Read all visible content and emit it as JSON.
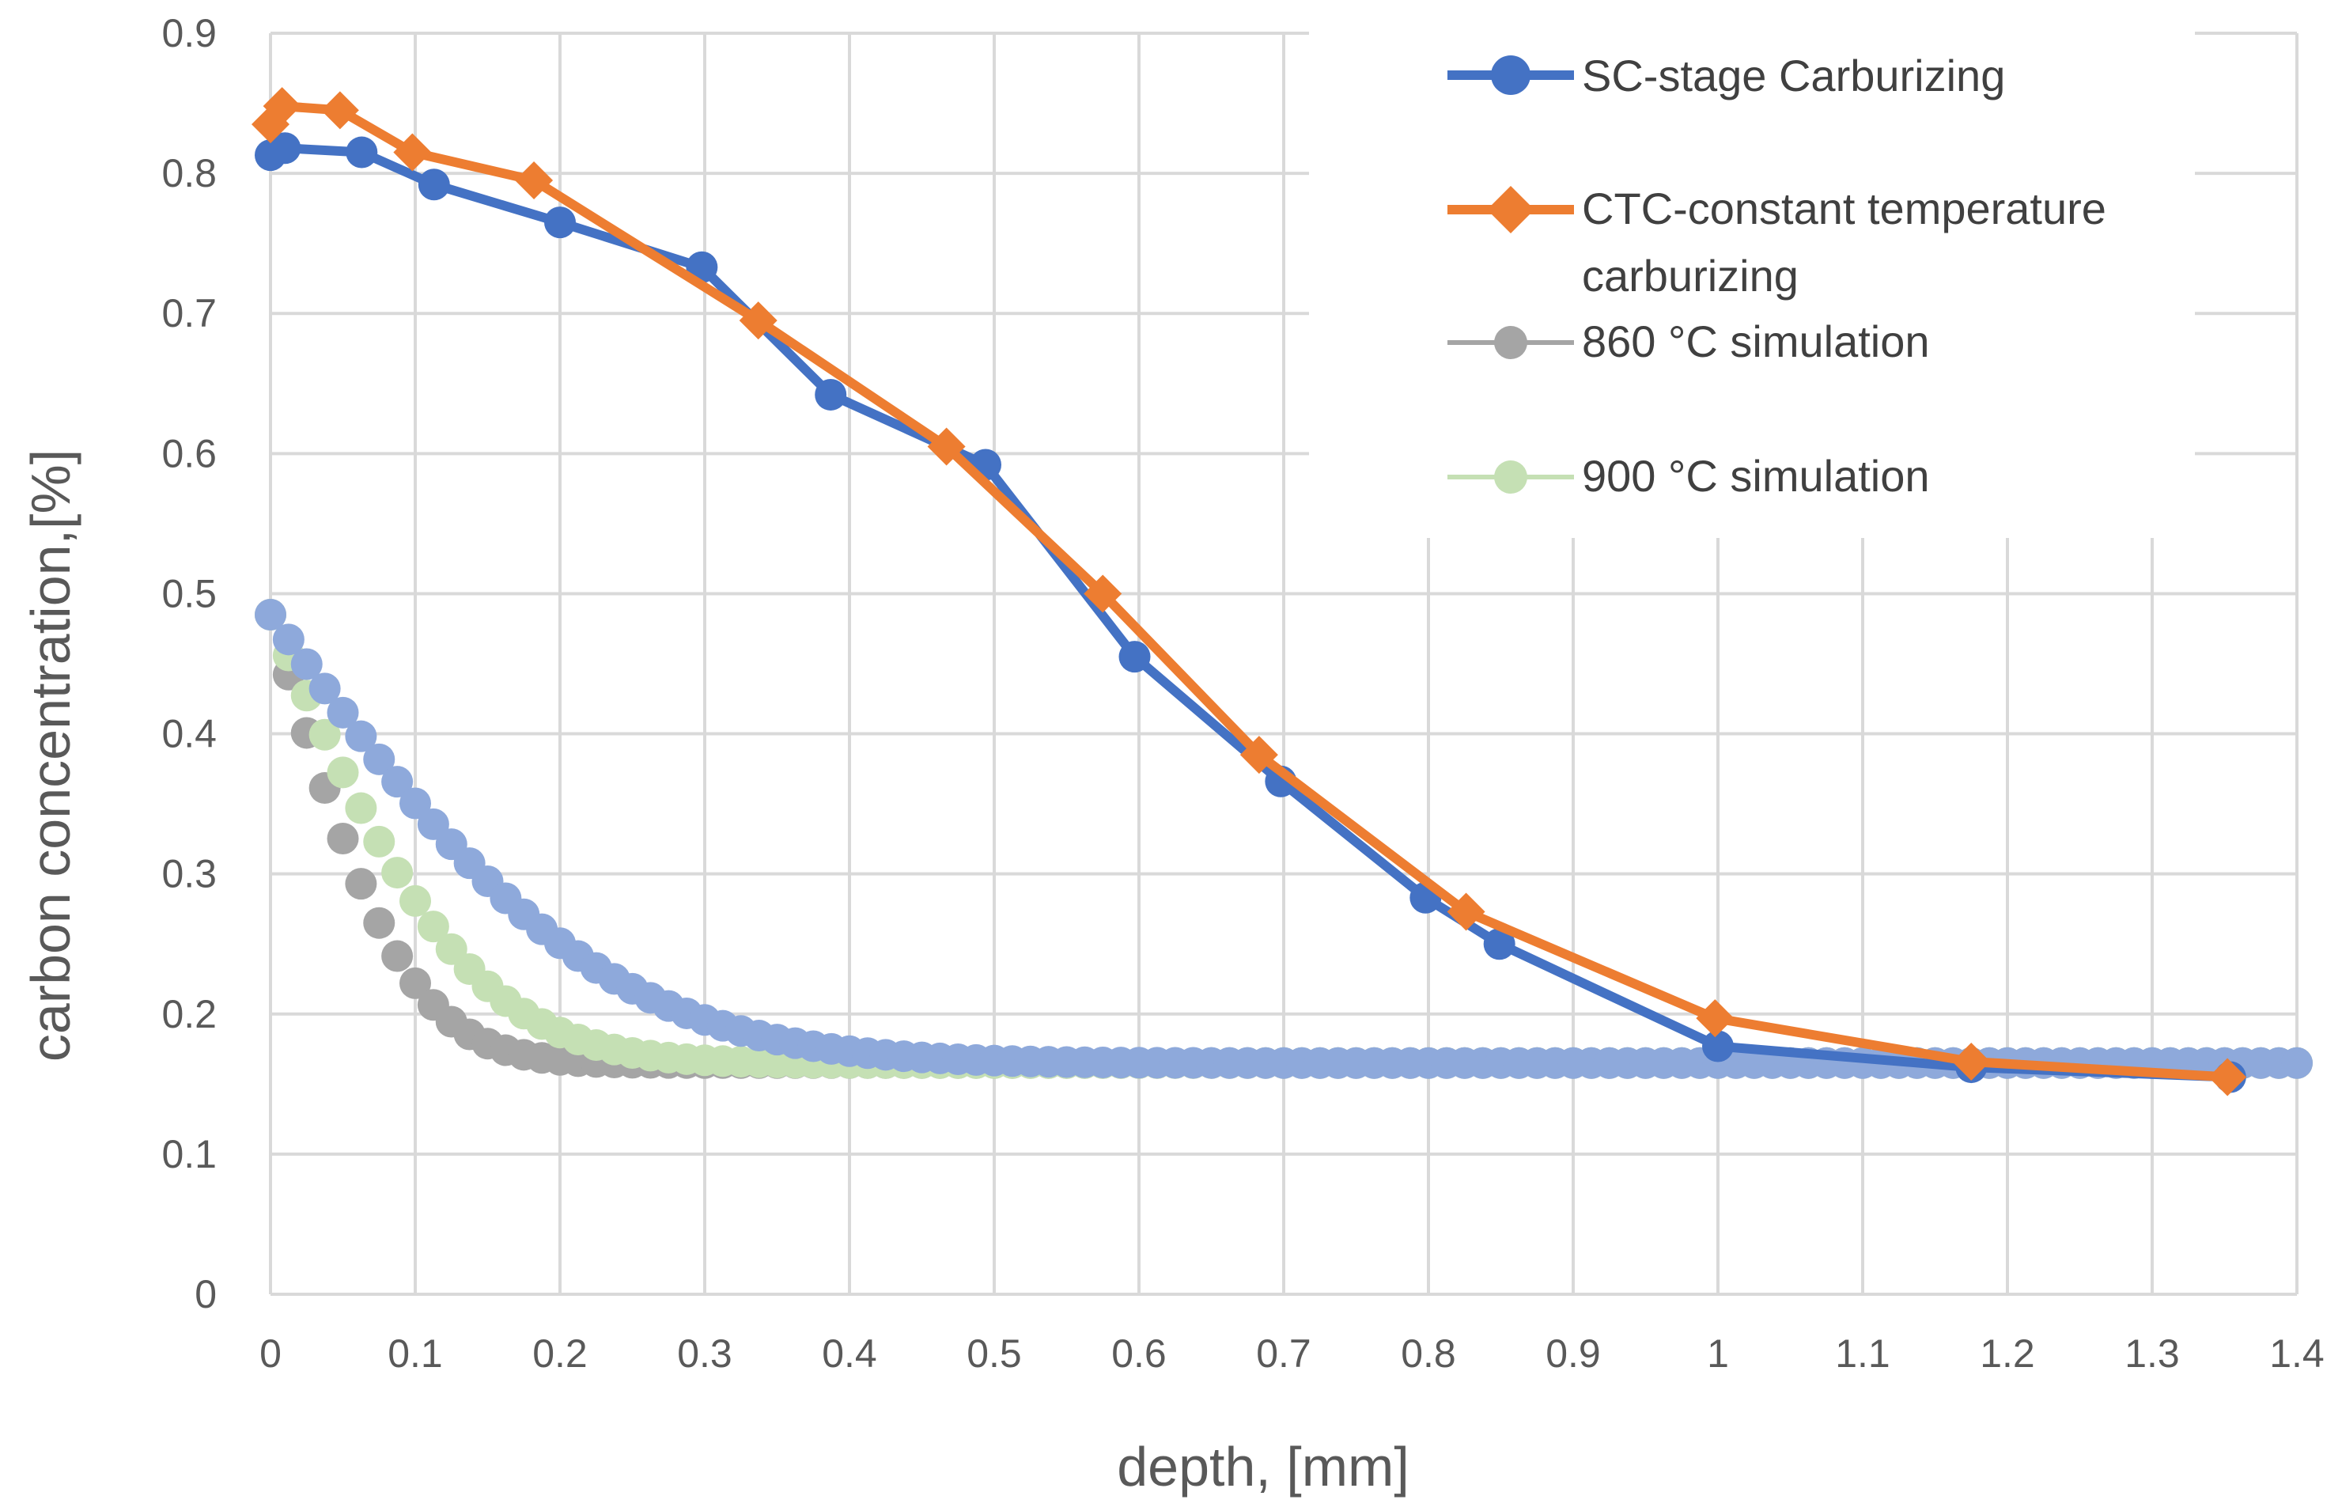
{
  "chart_data": {
    "type": "line",
    "title": "",
    "xlabel": "depth, [mm]",
    "ylabel": "carbon concentration,[%]",
    "xlim": [
      0,
      1.4
    ],
    "ylim": [
      0,
      0.9
    ],
    "xticks": [
      0,
      0.1,
      0.2,
      0.3,
      0.4,
      0.5,
      0.6,
      0.7,
      0.8,
      0.9,
      1.0,
      1.1,
      1.2,
      1.3,
      1.4
    ],
    "xtick_labels": [
      "0",
      "0.1",
      "0.2",
      "0.3",
      "0.4",
      "0.5",
      "0.6",
      "0.7",
      "0.8",
      "0.9",
      "1",
      "1.1",
      "1.2",
      "1.3",
      "1.4"
    ],
    "yticks": [
      0,
      0.1,
      0.2,
      0.3,
      0.4,
      0.5,
      0.6,
      0.7,
      0.8,
      0.9
    ],
    "ytick_labels": [
      "0",
      "0.1",
      "0.2",
      "0.3",
      "0.4",
      "0.5",
      "0.6",
      "0.7",
      "0.8",
      "0.9"
    ],
    "grid": true,
    "legend_position": "top-right",
    "legend_entries": [
      {
        "label": "SC-stage Carburizing",
        "series": "sc"
      },
      {
        "label": "CTC-constant temperature carburizing",
        "series": "ctc"
      },
      {
        "label": "860 °C simulation",
        "series": "sim860"
      },
      {
        "label": "900 °C simulation",
        "series": "sim900"
      }
    ],
    "series": [
      {
        "id": "sc",
        "name": "SC-stage Carburizing",
        "color": "#4472C4",
        "marker": "circle",
        "line": true,
        "x": [
          0.0,
          0.01,
          0.063,
          0.113,
          0.2,
          0.298,
          0.387,
          0.494,
          0.597,
          0.698,
          0.798,
          0.849,
          1.0,
          1.175,
          1.354
        ],
        "y": [
          0.813,
          0.818,
          0.815,
          0.792,
          0.765,
          0.733,
          0.642,
          0.592,
          0.455,
          0.366,
          0.283,
          0.25,
          0.177,
          0.162,
          0.155
        ]
      },
      {
        "id": "ctc",
        "name": "CTC-constant temperature carburizing",
        "color": "#ED7D31",
        "marker": "diamond",
        "line": true,
        "x": [
          0.0,
          0.008,
          0.048,
          0.098,
          0.182,
          0.337,
          0.467,
          0.575,
          0.683,
          0.826,
          0.998,
          1.175,
          1.352
        ],
        "y": [
          0.835,
          0.848,
          0.845,
          0.815,
          0.795,
          0.695,
          0.605,
          0.5,
          0.385,
          0.273,
          0.197,
          0.166,
          0.155
        ]
      },
      {
        "id": "sim860",
        "name": "860 °C simulation",
        "color": "#A5A5A5",
        "marker": "circle",
        "line": false,
        "model": {
          "c_surface": 0.485,
          "c_core": 0.165,
          "diffusion_length_mm": 0.105,
          "x_max": 1.4,
          "step": 0.0125
        }
      },
      {
        "id": "sim900",
        "name": "900 °C simulation",
        "color": "#C5E0B4",
        "marker": "circle",
        "line": false,
        "model": {
          "c_surface": 0.485,
          "c_core": 0.165,
          "diffusion_length_mm": 0.155,
          "x_max": 1.4,
          "step": 0.0125
        }
      },
      {
        "id": "sim_blue",
        "name": "",
        "color": "#8EA9DB",
        "marker": "circle",
        "line": false,
        "model": {
          "c_surface": 0.485,
          "c_core": 0.165,
          "diffusion_length_mm": 0.255,
          "x_max": 1.4,
          "step": 0.0125
        }
      }
    ]
  }
}
